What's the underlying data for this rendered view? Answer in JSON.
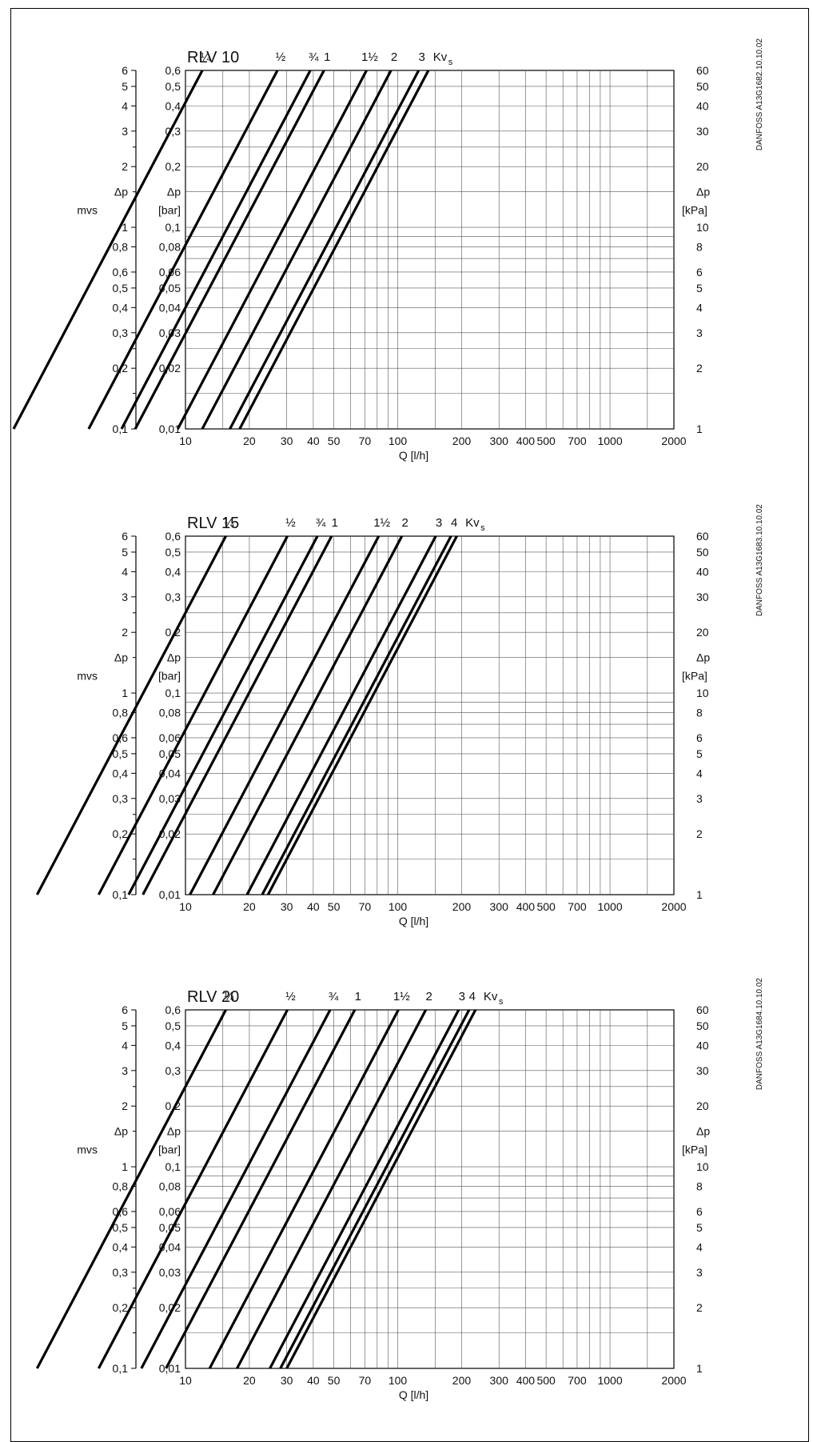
{
  "chart_data": [
    {
      "type": "line",
      "title": "RLV  10",
      "code": "DANFOSS A13G1682.10.10.02",
      "xlabel": "Q  [l/h]",
      "x_scale": "log",
      "xlim": [
        10,
        2000
      ],
      "x_ticks": [
        "10",
        "20",
        "30",
        "40",
        "50",
        "70",
        "100",
        "200",
        "300",
        "400",
        "500",
        "700",
        "1000",
        "2000"
      ],
      "ylim_bar": [
        0.01,
        0.6
      ],
      "y_scale": "log",
      "y_ticks_mvs": [
        "0,1",
        "0,2",
        "0,3",
        "0,4",
        "0,5",
        "0,6",
        "0,8",
        "1",
        "2",
        "3",
        "4",
        "5",
        "6"
      ],
      "y_ticks_bar": [
        "0,01",
        "0,02",
        "0,03",
        "0,04",
        "0,05",
        "0,06",
        "0,08",
        "0,1",
        "0,2",
        "0,3",
        "0,4",
        "0,5",
        "0,6"
      ],
      "y_ticks_kpa": [
        "1",
        "2",
        "3",
        "4",
        "5",
        "6",
        "8",
        "10",
        "20",
        "30",
        "40",
        "50",
        "60"
      ],
      "left_label": [
        "Δp",
        "mvs"
      ],
      "mid_label": [
        "Δp",
        "[bar]"
      ],
      "right_label": [
        "Δp",
        "[kPa]"
      ],
      "kv_label": "Kv",
      "kv_sub": "s",
      "grid": true,
      "series": [
        {
          "name": "¼",
          "kv": 0.155
        },
        {
          "name": "½",
          "kv": 0.35
        },
        {
          "name": "¾",
          "kv": 0.5
        },
        {
          "name": "1",
          "kv": 0.58
        },
        {
          "name": "1½",
          "kv": 0.92
        },
        {
          "name": "2",
          "kv": 1.2
        },
        {
          "name": "3",
          "kv": 1.62
        },
        {
          "name": "",
          "kv": 1.8
        }
      ]
    },
    {
      "type": "line",
      "title": "RLV  15",
      "code": "DANFOSS A13G1683.10.10.02",
      "xlabel": "Q  [l/h]",
      "x_scale": "log",
      "xlim": [
        10,
        2000
      ],
      "x_ticks": [
        "10",
        "20",
        "30",
        "40",
        "50",
        "70",
        "100",
        "200",
        "300",
        "400",
        "500",
        "700",
        "1000",
        "2000"
      ],
      "ylim_bar": [
        0.01,
        0.6
      ],
      "y_scale": "log",
      "y_ticks_mvs": [
        "0,1",
        "0,2",
        "0,3",
        "0,4",
        "0,5",
        "0,6",
        "0,8",
        "1",
        "2",
        "3",
        "4",
        "5",
        "6"
      ],
      "y_ticks_bar": [
        "0,01",
        "0,02",
        "0,03",
        "0,04",
        "0,05",
        "0,06",
        "0,08",
        "0,1",
        "0,2",
        "0,3",
        "0,4",
        "0,5",
        "0,6"
      ],
      "y_ticks_kpa": [
        "1",
        "2",
        "3",
        "4",
        "5",
        "6",
        "8",
        "10",
        "20",
        "30",
        "40",
        "50",
        "60"
      ],
      "left_label": [
        "Δp",
        "mvs"
      ],
      "mid_label": [
        "Δp",
        "[bar]"
      ],
      "right_label": [
        "Δp",
        "[kPa]"
      ],
      "kv_label": "Kv",
      "kv_sub": "s",
      "grid": true,
      "series": [
        {
          "name": "¼",
          "kv": 0.2
        },
        {
          "name": "½",
          "kv": 0.39
        },
        {
          "name": "¾",
          "kv": 0.54
        },
        {
          "name": "1",
          "kv": 0.63
        },
        {
          "name": "1½",
          "kv": 1.05
        },
        {
          "name": "2",
          "kv": 1.35
        },
        {
          "name": "3",
          "kv": 1.95
        },
        {
          "name": "4",
          "kv": 2.3
        },
        {
          "name": "",
          "kv": 2.45
        }
      ]
    },
    {
      "type": "line",
      "title": "RLV  20",
      "code": "DANFOSS A13G1684.10.10.02",
      "xlabel": "Q  [l/h]",
      "x_scale": "log",
      "xlim": [
        10,
        2000
      ],
      "x_ticks": [
        "10",
        "20",
        "30",
        "40",
        "50",
        "70",
        "100",
        "200",
        "300",
        "400",
        "500",
        "700",
        "1000",
        "2000"
      ],
      "ylim_bar": [
        0.01,
        0.6
      ],
      "y_scale": "log",
      "y_ticks_mvs": [
        "0,1",
        "0,2",
        "0,3",
        "0,4",
        "0,5",
        "0,6",
        "0,8",
        "1",
        "2",
        "3",
        "4",
        "5",
        "6"
      ],
      "y_ticks_bar": [
        "0,01",
        "0,02",
        "0,03",
        "0,04",
        "0,05",
        "0,06",
        "0,08",
        "0,1",
        "0,2",
        "0,3",
        "0,4",
        "0,5",
        "0,6"
      ],
      "y_ticks_kpa": [
        "1",
        "2",
        "3",
        "4",
        "5",
        "6",
        "8",
        "10",
        "20",
        "30",
        "40",
        "50",
        "60"
      ],
      "left_label": [
        "Δp",
        "mvs"
      ],
      "mid_label": [
        "Δp",
        "[bar]"
      ],
      "right_label": [
        "Δp",
        "[kPa]"
      ],
      "kv_label": "Kv",
      "kv_sub": "s",
      "grid": true,
      "series": [
        {
          "name": "¼",
          "kv": 0.2
        },
        {
          "name": "½",
          "kv": 0.39
        },
        {
          "name": "¾",
          "kv": 0.62
        },
        {
          "name": "1",
          "kv": 0.81
        },
        {
          "name": "1½",
          "kv": 1.3
        },
        {
          "name": "2",
          "kv": 1.75
        },
        {
          "name": "3",
          "kv": 2.5
        },
        {
          "name": "4",
          "kv": 2.8
        },
        {
          "name": "",
          "kv": 3.0
        }
      ]
    }
  ]
}
